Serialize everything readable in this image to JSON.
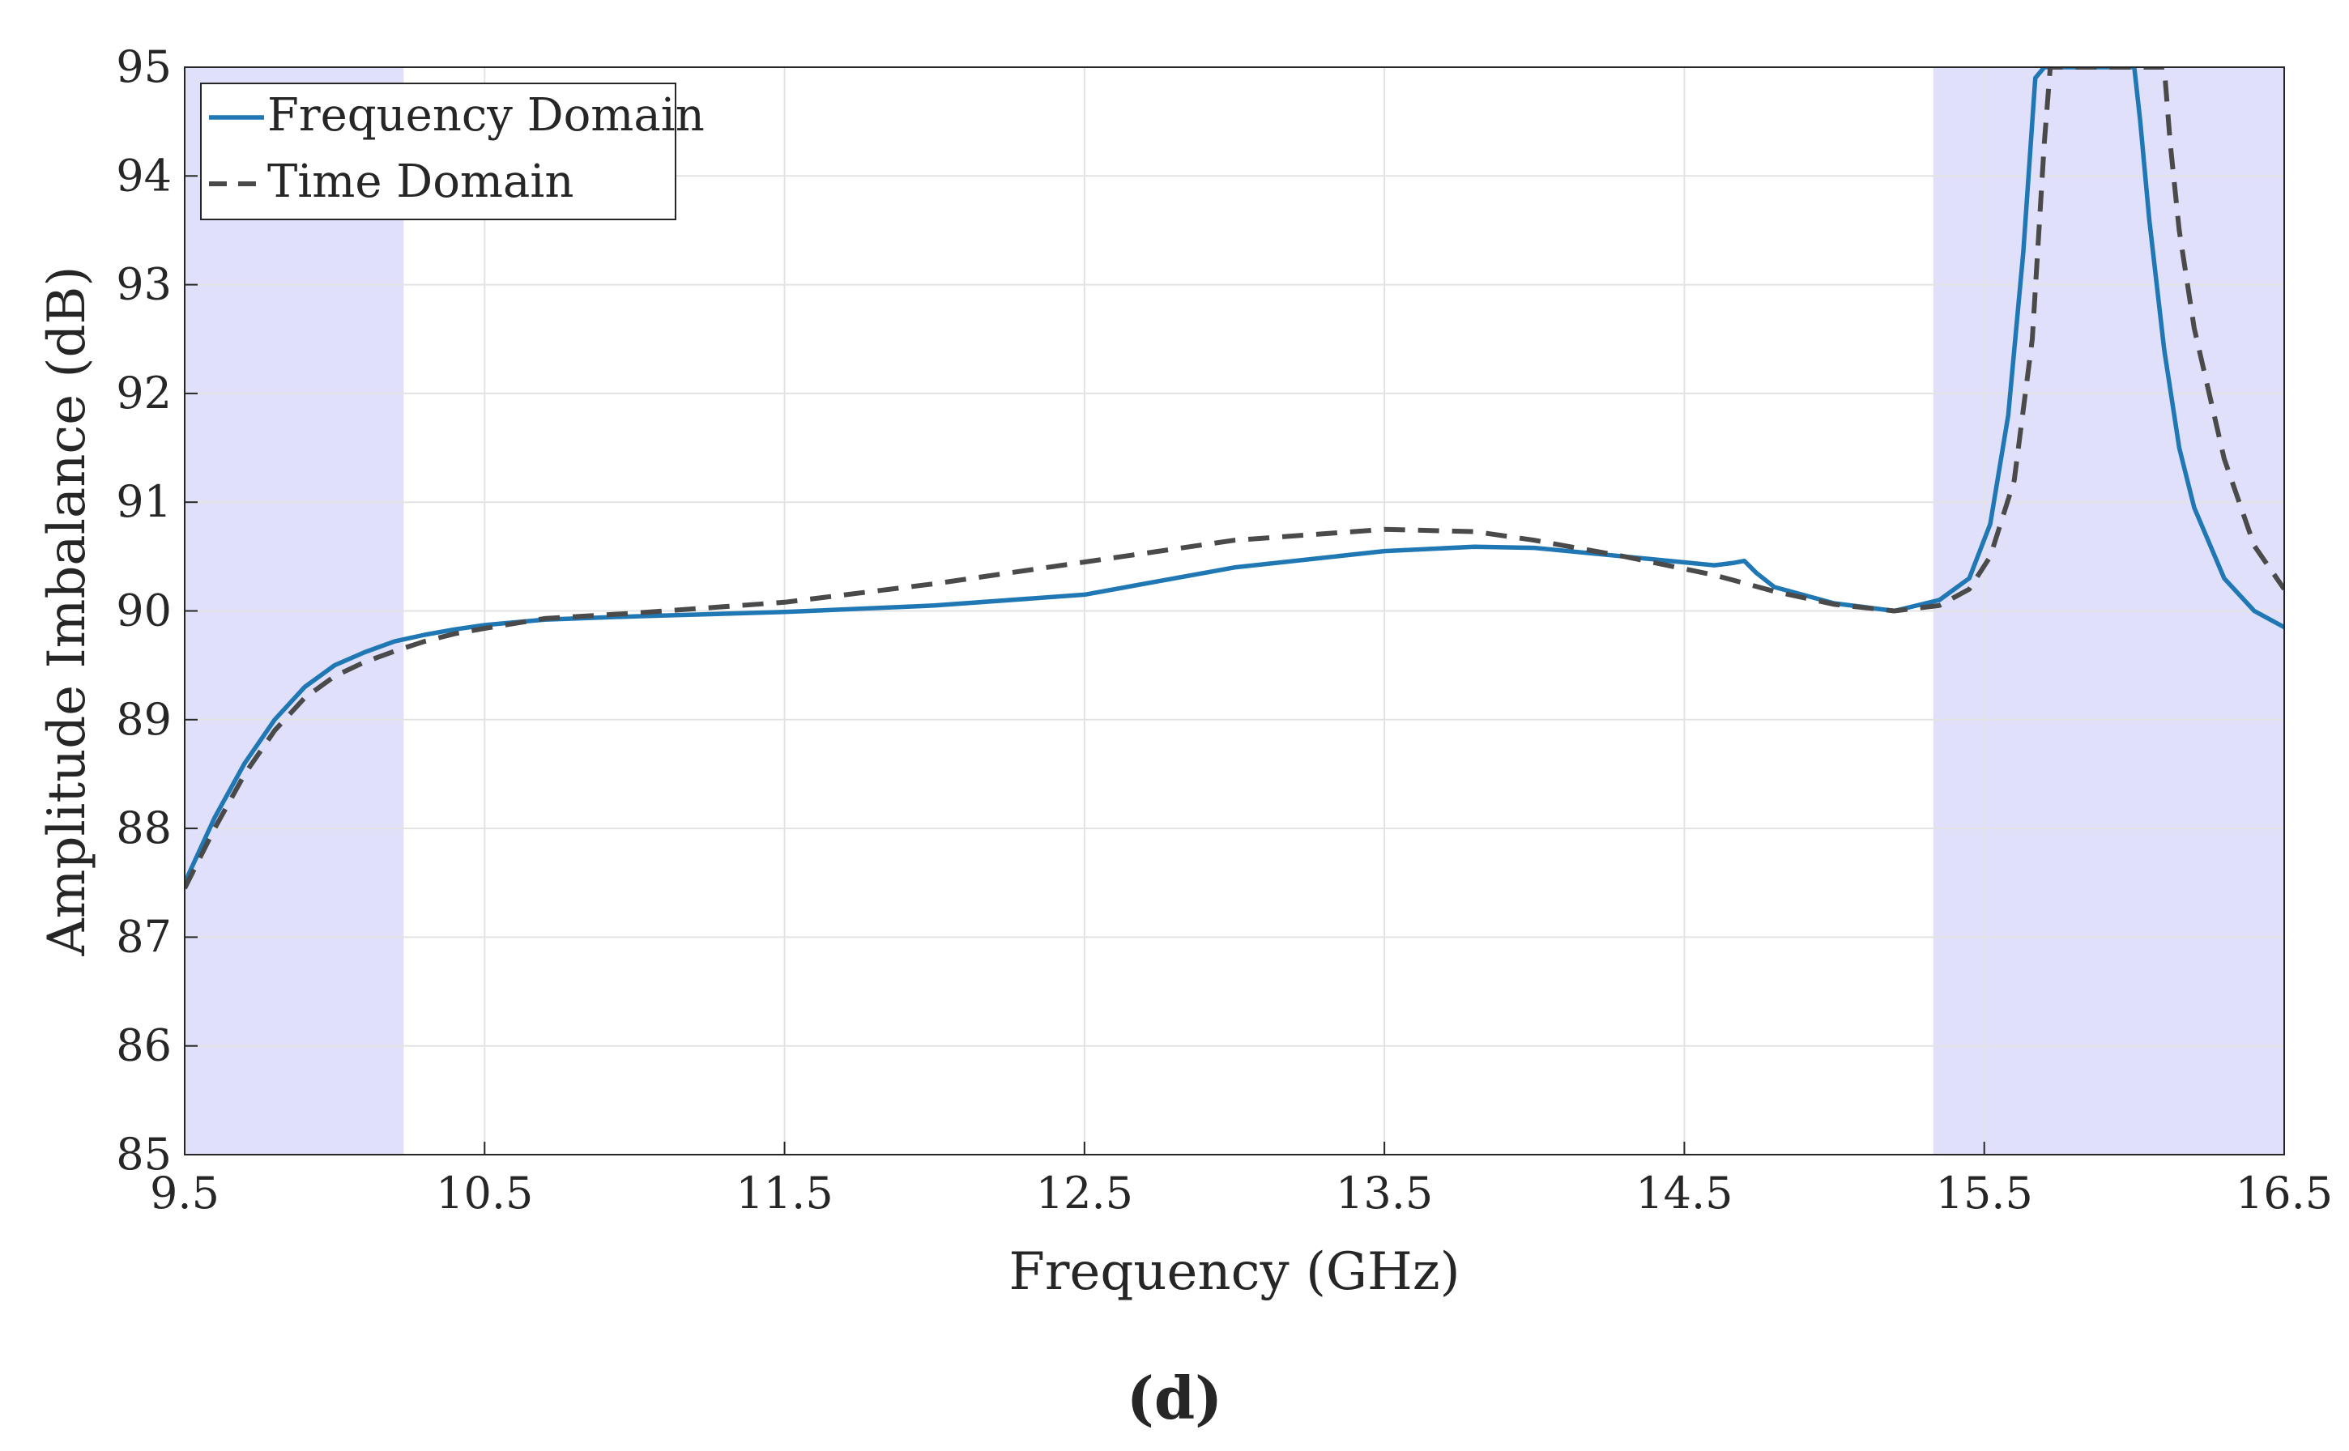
{
  "chart_data": {
    "type": "line",
    "title": "",
    "xlabel": "Frequency (GHz)",
    "ylabel": "Amplitude Imbalance (dB)",
    "xlim": [
      9.5,
      16.5
    ],
    "ylim": [
      85,
      95
    ],
    "xticks": [
      9.5,
      10.5,
      11.5,
      12.5,
      13.5,
      14.5,
      15.5,
      16.5
    ],
    "xtick_labels": [
      "9.5",
      "10.5",
      "11.5",
      "12.5",
      "13.5",
      "14.5",
      "15.5",
      "16.5"
    ],
    "yticks": [
      85,
      86,
      87,
      88,
      89,
      90,
      91,
      92,
      93,
      94,
      95
    ],
    "ytick_labels": [
      "85",
      "86",
      "87",
      "88",
      "89",
      "90",
      "91",
      "92",
      "93",
      "94",
      "95"
    ],
    "grid": true,
    "legend_position": "top-left",
    "shaded_regions": [
      {
        "x_start": 9.5,
        "x_end": 10.23,
        "color": "#e0e0fa"
      },
      {
        "x_start": 15.33,
        "x_end": 16.5,
        "color": "#e0e0fa"
      }
    ],
    "series": [
      {
        "name": "Frequency Domain",
        "color": "#1f77b4",
        "style": "solid",
        "x": [
          9.5,
          9.6,
          9.7,
          9.8,
          9.9,
          10.0,
          10.1,
          10.2,
          10.3,
          10.4,
          10.5,
          10.7,
          11.0,
          11.5,
          12.0,
          12.5,
          13.0,
          13.5,
          13.8,
          14.0,
          14.3,
          14.6,
          14.66,
          14.7,
          14.74,
          14.8,
          15.0,
          15.2,
          15.35,
          15.45,
          15.52,
          15.58,
          15.63,
          15.67,
          15.7,
          16.0,
          16.02,
          16.05,
          16.1,
          16.15,
          16.2,
          16.3,
          16.4,
          16.5
        ],
        "y": [
          87.5,
          88.1,
          88.6,
          89.0,
          89.3,
          89.5,
          89.62,
          89.72,
          89.78,
          89.83,
          89.87,
          89.92,
          89.95,
          89.99,
          90.05,
          90.15,
          90.4,
          90.55,
          90.59,
          90.58,
          90.5,
          90.42,
          90.44,
          90.46,
          90.35,
          90.22,
          90.07,
          90.0,
          90.1,
          90.3,
          90.8,
          91.8,
          93.3,
          94.9,
          95.0,
          95.0,
          94.5,
          93.6,
          92.4,
          91.5,
          90.95,
          90.3,
          90.0,
          89.85
        ]
      },
      {
        "name": "Time Domain",
        "color": "#4a4a4a",
        "style": "dashed",
        "x": [
          9.5,
          9.6,
          9.7,
          9.8,
          9.9,
          10.0,
          10.1,
          10.2,
          10.3,
          10.4,
          10.5,
          10.7,
          11.0,
          11.5,
          12.0,
          12.5,
          13.0,
          13.5,
          13.8,
          14.0,
          14.3,
          14.6,
          14.8,
          15.0,
          15.2,
          15.35,
          15.45,
          15.52,
          15.6,
          15.66,
          15.7,
          15.72,
          16.1,
          16.12,
          16.15,
          16.2,
          16.3,
          16.4,
          16.5
        ],
        "y": [
          87.45,
          88.0,
          88.5,
          88.9,
          89.2,
          89.4,
          89.53,
          89.63,
          89.72,
          89.79,
          89.84,
          89.93,
          89.98,
          90.08,
          90.25,
          90.45,
          90.65,
          90.75,
          90.73,
          90.65,
          90.5,
          90.33,
          90.18,
          90.06,
          90.0,
          90.05,
          90.2,
          90.5,
          91.2,
          92.5,
          94.3,
          95.0,
          95.0,
          94.3,
          93.5,
          92.6,
          91.4,
          90.6,
          90.2
        ]
      }
    ],
    "panel_label": "(d)"
  }
}
